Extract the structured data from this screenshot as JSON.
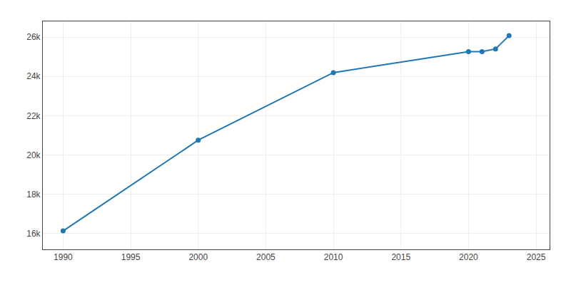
{
  "chart_data": {
    "type": "line",
    "x": [
      1990,
      2000,
      2010,
      2020,
      2021,
      2022,
      2023
    ],
    "values": [
      16139,
      20756,
      24194,
      25255,
      25261,
      25398,
      26071
    ],
    "marker": "circle",
    "xlim": [
      1988.5,
      2026.0
    ],
    "ylim": [
      15200,
      26800
    ],
    "xticks": [
      1990,
      1995,
      2000,
      2005,
      2010,
      2015,
      2020,
      2025
    ],
    "yticks": [
      {
        "value": 16000,
        "label": "16k"
      },
      {
        "value": 18000,
        "label": "18k"
      },
      {
        "value": 20000,
        "label": "20k"
      },
      {
        "value": 22000,
        "label": "22k"
      },
      {
        "value": 24000,
        "label": "24k"
      },
      {
        "value": 26000,
        "label": "26k"
      }
    ],
    "grid": true
  }
}
